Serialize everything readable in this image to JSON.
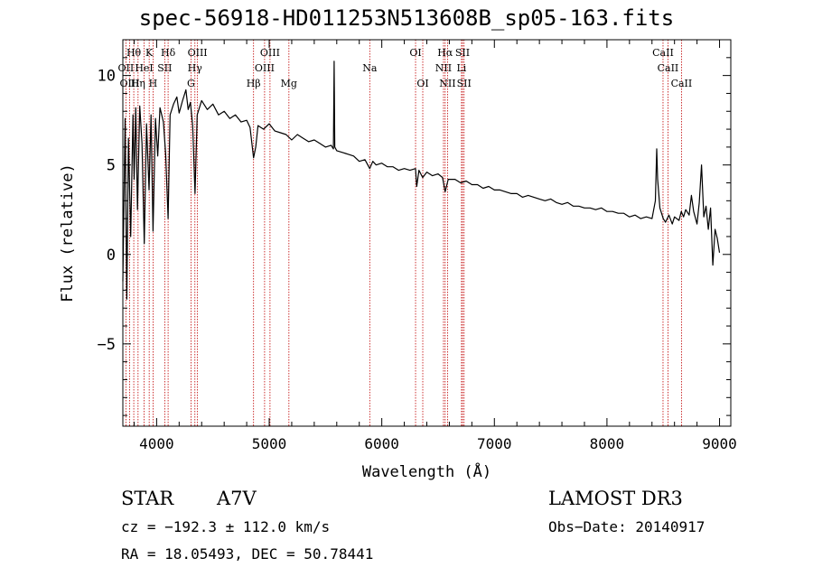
{
  "chart_data": {
    "type": "line",
    "title": "spec-56918-HD011253N513608B_sp05-163.fits",
    "xlabel": "Wavelength (Å)",
    "ylabel": "Flux (relative)",
    "xlim": [
      3700,
      9100
    ],
    "ylim": [
      -9.6,
      12
    ],
    "xticks": [
      4000,
      5000,
      6000,
      7000,
      8000,
      9000
    ],
    "yticks": [
      -5,
      0,
      5,
      10
    ],
    "grid": false,
    "series": [
      {
        "color": "#000000",
        "points": [
          [
            3700,
            -1.5
          ],
          [
            3720,
            7.6
          ],
          [
            3735,
            -2.5
          ],
          [
            3750,
            6.5
          ],
          [
            3770,
            1.0
          ],
          [
            3790,
            7.8
          ],
          [
            3800,
            4.2
          ],
          [
            3815,
            8.2
          ],
          [
            3830,
            2.5
          ],
          [
            3850,
            8.3
          ],
          [
            3870,
            6.2
          ],
          [
            3890,
            0.6
          ],
          [
            3910,
            7.3
          ],
          [
            3933,
            3.6
          ],
          [
            3950,
            7.8
          ],
          [
            3968,
            1.3
          ],
          [
            3990,
            7.6
          ],
          [
            4010,
            5.5
          ],
          [
            4030,
            8.2
          ],
          [
            4060,
            7.4
          ],
          [
            4080,
            5.6
          ],
          [
            4102,
            2.0
          ],
          [
            4120,
            7.8
          ],
          [
            4150,
            8.4
          ],
          [
            4180,
            8.8
          ],
          [
            4200,
            7.9
          ],
          [
            4230,
            8.6
          ],
          [
            4260,
            9.2
          ],
          [
            4280,
            8.1
          ],
          [
            4300,
            8.5
          ],
          [
            4320,
            7.2
          ],
          [
            4341,
            3.4
          ],
          [
            4360,
            7.8
          ],
          [
            4400,
            8.6
          ],
          [
            4450,
            8.1
          ],
          [
            4500,
            8.4
          ],
          [
            4550,
            7.8
          ],
          [
            4600,
            8.0
          ],
          [
            4650,
            7.6
          ],
          [
            4700,
            7.8
          ],
          [
            4750,
            7.4
          ],
          [
            4800,
            7.5
          ],
          [
            4830,
            7.1
          ],
          [
            4861,
            5.4
          ],
          [
            4880,
            6.0
          ],
          [
            4900,
            7.2
          ],
          [
            4950,
            7.0
          ],
          [
            5000,
            7.3
          ],
          [
            5050,
            6.9
          ],
          [
            5100,
            6.8
          ],
          [
            5150,
            6.7
          ],
          [
            5200,
            6.4
          ],
          [
            5250,
            6.7
          ],
          [
            5300,
            6.5
          ],
          [
            5350,
            6.3
          ],
          [
            5400,
            6.4
          ],
          [
            5450,
            6.2
          ],
          [
            5500,
            6.0
          ],
          [
            5550,
            6.1
          ],
          [
            5570,
            5.9
          ],
          [
            5577,
            10.8
          ],
          [
            5582,
            6.0
          ],
          [
            5600,
            5.8
          ],
          [
            5650,
            5.7
          ],
          [
            5700,
            5.6
          ],
          [
            5750,
            5.5
          ],
          [
            5800,
            5.2
          ],
          [
            5850,
            5.3
          ],
          [
            5893,
            4.8
          ],
          [
            5920,
            5.2
          ],
          [
            5950,
            5.0
          ],
          [
            6000,
            5.1
          ],
          [
            6050,
            4.9
          ],
          [
            6100,
            4.9
          ],
          [
            6150,
            4.7
          ],
          [
            6200,
            4.8
          ],
          [
            6250,
            4.7
          ],
          [
            6300,
            4.8
          ],
          [
            6310,
            3.8
          ],
          [
            6330,
            4.7
          ],
          [
            6363,
            4.3
          ],
          [
            6400,
            4.6
          ],
          [
            6450,
            4.4
          ],
          [
            6500,
            4.5
          ],
          [
            6540,
            4.3
          ],
          [
            6563,
            3.5
          ],
          [
            6590,
            4.2
          ],
          [
            6650,
            4.2
          ],
          [
            6700,
            4.0
          ],
          [
            6750,
            4.1
          ],
          [
            6800,
            3.9
          ],
          [
            6850,
            3.9
          ],
          [
            6900,
            3.7
          ],
          [
            6950,
            3.8
          ],
          [
            7000,
            3.6
          ],
          [
            7050,
            3.6
          ],
          [
            7100,
            3.5
          ],
          [
            7150,
            3.4
          ],
          [
            7200,
            3.4
          ],
          [
            7250,
            3.2
          ],
          [
            7300,
            3.3
          ],
          [
            7350,
            3.2
          ],
          [
            7400,
            3.1
          ],
          [
            7450,
            3.0
          ],
          [
            7500,
            3.1
          ],
          [
            7550,
            2.9
          ],
          [
            7600,
            2.8
          ],
          [
            7650,
            2.9
          ],
          [
            7700,
            2.7
          ],
          [
            7750,
            2.7
          ],
          [
            7800,
            2.6
          ],
          [
            7850,
            2.6
          ],
          [
            7900,
            2.5
          ],
          [
            7950,
            2.6
          ],
          [
            8000,
            2.4
          ],
          [
            8050,
            2.4
          ],
          [
            8100,
            2.3
          ],
          [
            8150,
            2.3
          ],
          [
            8200,
            2.1
          ],
          [
            8250,
            2.2
          ],
          [
            8300,
            2.0
          ],
          [
            8350,
            2.1
          ],
          [
            8400,
            2.0
          ],
          [
            8430,
            3.0
          ],
          [
            8442,
            5.9
          ],
          [
            8450,
            4.2
          ],
          [
            8470,
            2.6
          ],
          [
            8500,
            2.0
          ],
          [
            8520,
            1.8
          ],
          [
            8550,
            2.2
          ],
          [
            8580,
            1.7
          ],
          [
            8600,
            2.1
          ],
          [
            8640,
            1.9
          ],
          [
            8660,
            2.4
          ],
          [
            8680,
            2.1
          ],
          [
            8700,
            2.5
          ],
          [
            8730,
            2.2
          ],
          [
            8750,
            3.3
          ],
          [
            8770,
            2.4
          ],
          [
            8800,
            1.7
          ],
          [
            8820,
            2.9
          ],
          [
            8840,
            5.0
          ],
          [
            8860,
            2.1
          ],
          [
            8880,
            2.7
          ],
          [
            8900,
            1.4
          ],
          [
            8920,
            2.6
          ],
          [
            8940,
            -0.6
          ],
          [
            8960,
            1.4
          ],
          [
            8980,
            0.9
          ],
          [
            9000,
            0.1
          ]
        ]
      }
    ],
    "markers": [
      {
        "label": "Hθ",
        "x": 3797,
        "row": 0
      },
      {
        "label": "K",
        "x": 3934,
        "row": 0
      },
      {
        "label": "Hδ",
        "x": 4102,
        "row": 0
      },
      {
        "label": "OIII",
        "x": 4363,
        "row": 0
      },
      {
        "label": "OIII",
        "x": 5007,
        "row": 0
      },
      {
        "label": "OI",
        "x": 6300,
        "row": 0
      },
      {
        "label": "Hα",
        "x": 6563,
        "row": 0
      },
      {
        "label": "SII",
        "x": 6717,
        "row": 0
      },
      {
        "label": "CaII",
        "x": 8498,
        "row": 0
      },
      {
        "label": "OII",
        "x": 3727,
        "row": 1
      },
      {
        "label": "HeI",
        "x": 3889,
        "row": 1
      },
      {
        "label": "SII",
        "x": 4072,
        "row": 1
      },
      {
        "label": "Hγ",
        "x": 4340,
        "row": 1
      },
      {
        "label": "OIII",
        "x": 4959,
        "row": 1
      },
      {
        "label": "Na",
        "x": 5893,
        "row": 1
      },
      {
        "label": "NII",
        "x": 6548,
        "row": 1
      },
      {
        "label": "Li",
        "x": 6708,
        "row": 1
      },
      {
        "label": "CaII",
        "x": 8542,
        "row": 1
      },
      {
        "label": "OIII",
        "x": 3760,
        "row": 2
      },
      {
        "label": "Hη",
        "x": 3835,
        "row": 2
      },
      {
        "label": "H",
        "x": 3968,
        "row": 2
      },
      {
        "label": "G",
        "x": 4305,
        "row": 2
      },
      {
        "label": "Hβ",
        "x": 4861,
        "row": 2
      },
      {
        "label": "Mg",
        "x": 5175,
        "row": 2
      },
      {
        "label": "OI",
        "x": 6364,
        "row": 2
      },
      {
        "label": "NII",
        "x": 6584,
        "row": 2
      },
      {
        "label": "SII",
        "x": 6731,
        "row": 2
      },
      {
        "label": "CaII",
        "x": 8662,
        "row": 2
      }
    ]
  },
  "info": {
    "object_type": "STAR",
    "subclass": "A7V",
    "survey": "LAMOST DR3",
    "cz": "cz = −192.3 ± 112.0 km/s",
    "obs_date": "Obs−Date: 20140917",
    "coords": "RA =  18.05493, DEC =  50.78441"
  }
}
